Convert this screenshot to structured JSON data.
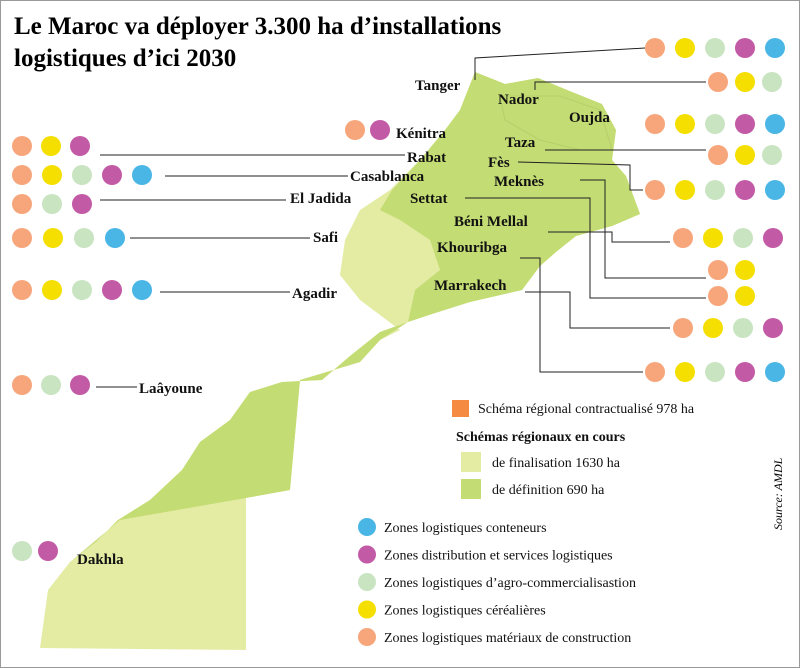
{
  "title": {
    "line1": "Le Maroc va déployer 3.300 ha d’installations",
    "line2": "logistiques d’ici 2030"
  },
  "regions_legend": {
    "contracted": {
      "label": "Schéma régional contractualisé 978 ha",
      "color": "#f58a42"
    },
    "heading": "Schémas régionaux en cours",
    "items": [
      {
        "label": "de finalisation 1630 ha",
        "color": "#e4eca4"
      },
      {
        "label": "de définition 690 ha",
        "color": "#c4dc74"
      }
    ]
  },
  "zones_legend": [
    {
      "label": "Zones logistiques conteneurs",
      "color": "#4ab6e6"
    },
    {
      "label": "Zones distribution et services logistiques",
      "color": "#c25aa6"
    },
    {
      "label": "Zones logistiques d’agro-commercialisastion",
      "color": "#c9e4c1"
    },
    {
      "label": "Zones logistiques céréalières",
      "color": "#f4df00"
    },
    {
      "label": "Zones logistiques matériaux de construction",
      "color": "#f7a67b"
    }
  ],
  "cities": [
    {
      "name": "Tanger",
      "zones": [
        4,
        3,
        2,
        1,
        0
      ]
    },
    {
      "name": "Nador",
      "zones": [
        4,
        3,
        2
      ]
    },
    {
      "name": "Oujda",
      "zones": [
        4,
        3,
        2,
        1,
        0
      ]
    },
    {
      "name": "Kénitra",
      "zones": [
        4,
        1
      ]
    },
    {
      "name": "Rabat",
      "zones": [
        4,
        3,
        1
      ]
    },
    {
      "name": "Taza",
      "zones": [
        4,
        3,
        2
      ]
    },
    {
      "name": "Fès",
      "zones": [
        4,
        3,
        2,
        1,
        0
      ]
    },
    {
      "name": "Casablanca",
      "zones": [
        4,
        3,
        2,
        1,
        0
      ]
    },
    {
      "name": "Meknès",
      "zones": [
        4,
        3
      ]
    },
    {
      "name": "El Jadida",
      "zones": [
        4,
        2,
        1
      ]
    },
    {
      "name": "Settat",
      "zones": [
        4,
        3
      ]
    },
    {
      "name": "Béni Mellal",
      "zones": [
        4,
        3,
        2,
        1
      ]
    },
    {
      "name": "Safi",
      "zones": [
        4,
        3,
        2,
        0
      ]
    },
    {
      "name": "Khouribga",
      "zones": [
        4,
        3,
        2,
        1,
        0
      ]
    },
    {
      "name": "Marrakech",
      "zones": [
        4,
        3,
        2,
        1
      ]
    },
    {
      "name": "Agadir",
      "zones": [
        4,
        3,
        2,
        1,
        0
      ]
    },
    {
      "name": "Laâyoune",
      "zones": [
        4,
        2,
        1
      ]
    },
    {
      "name": "Dakhla",
      "zones": [
        2,
        1
      ]
    }
  ],
  "source": "Source: AMDL"
}
